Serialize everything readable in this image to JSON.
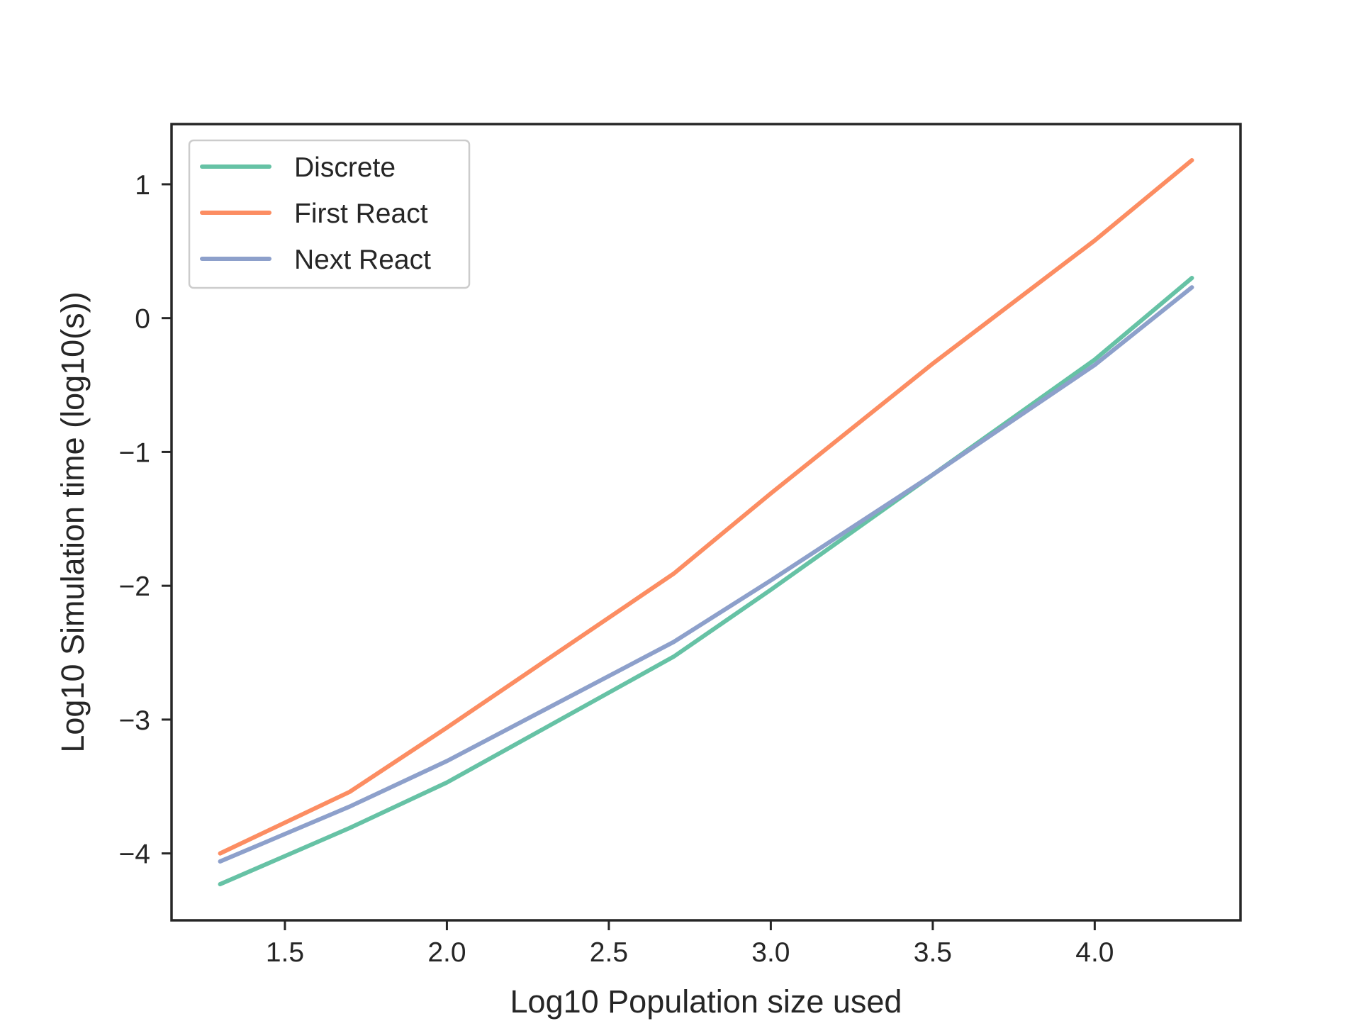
{
  "chart_data": {
    "type": "line",
    "title": "",
    "xlabel": "Log10 Population size used",
    "ylabel": "Log10 Simulation time (log10(s))",
    "xlim": [
      1.15,
      4.45
    ],
    "ylim": [
      -4.5,
      1.45
    ],
    "xticks": [
      1.5,
      2.0,
      2.5,
      3.0,
      3.5,
      4.0
    ],
    "xtick_labels": [
      "1.5",
      "2.0",
      "2.5",
      "3.0",
      "3.5",
      "4.0"
    ],
    "yticks": [
      -4,
      -3,
      -2,
      -1,
      0,
      1
    ],
    "ytick_labels": [
      "−4",
      "−3",
      "−2",
      "−1",
      "0",
      "1"
    ],
    "grid": false,
    "legend_position": "top-left",
    "series": [
      {
        "name": "Discrete",
        "color": "#66c2a5",
        "points": [
          [
            1.3,
            -4.23
          ],
          [
            1.7,
            -3.81
          ],
          [
            2.0,
            -3.47
          ],
          [
            2.7,
            -2.53
          ],
          [
            3.0,
            -2.03
          ],
          [
            3.5,
            -1.17
          ],
          [
            4.0,
            -0.31
          ],
          [
            4.3,
            0.3
          ]
        ]
      },
      {
        "name": "First React",
        "color": "#fc8d62",
        "points": [
          [
            1.3,
            -4.0
          ],
          [
            1.7,
            -3.54
          ],
          [
            2.0,
            -3.06
          ],
          [
            2.7,
            -1.91
          ],
          [
            3.0,
            -1.31
          ],
          [
            3.5,
            -0.34
          ],
          [
            4.0,
            0.58
          ],
          [
            4.3,
            1.18
          ]
        ]
      },
      {
        "name": "Next React",
        "color": "#8da0cb",
        "points": [
          [
            1.3,
            -4.06
          ],
          [
            1.7,
            -3.65
          ],
          [
            2.0,
            -3.31
          ],
          [
            2.7,
            -2.42
          ],
          [
            3.0,
            -1.96
          ],
          [
            3.5,
            -1.17
          ],
          [
            4.0,
            -0.35
          ],
          [
            4.3,
            0.23
          ]
        ]
      }
    ]
  }
}
